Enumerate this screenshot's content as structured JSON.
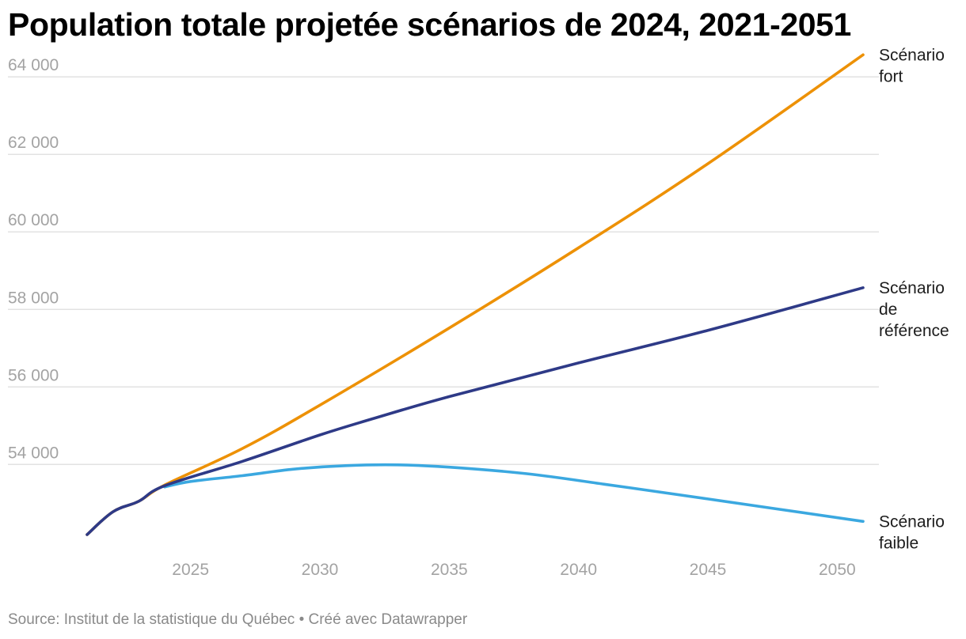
{
  "title": "Population totale projetée scénarios de 2024, 2021-2051",
  "footer": {
    "source": "Source: Institut de la statistique du Québec",
    "separator": "•",
    "credit": "Créé avec Datawrapper"
  },
  "colors": {
    "fort": "#ed9106",
    "reference": "#2e3a87",
    "faible": "#3ba8e0",
    "grid": "#e2e2e2",
    "tick_text": "#a3a3a3",
    "label_text": "#1d1d1d"
  },
  "chart_data": {
    "type": "line",
    "title": "Population totale projetée scénarios de 2024, 2021-2051",
    "xlabel": "",
    "ylabel": "",
    "xlim": [
      2021,
      2051
    ],
    "ylim": [
      51700,
      64800
    ],
    "x_ticks": [
      2025,
      2030,
      2035,
      2040,
      2045,
      2050
    ],
    "y_ticks": [
      54000,
      56000,
      58000,
      60000,
      62000,
      64000
    ],
    "y_tick_labels": [
      "54 000",
      "56 000",
      "58 000",
      "60 000",
      "62 000",
      "64 000"
    ],
    "grid": true,
    "legend": "direct labels at line ends (right)",
    "series": [
      {
        "name": "Scénario fort",
        "label_lines": [
          "Scénario",
          "fort"
        ],
        "color": "#ed9106",
        "x": [
          2021,
          2022,
          2023,
          2024,
          2027,
          2030,
          2035,
          2040,
          2045,
          2051
        ],
        "y": [
          52190,
          52780,
          53050,
          53470,
          54410,
          55530,
          57520,
          59590,
          61760,
          64570
        ]
      },
      {
        "name": "Scénario de référence",
        "label_lines": [
          "Scénario",
          "de",
          "référence"
        ],
        "color": "#2e3a87",
        "x": [
          2021,
          2022,
          2023,
          2024,
          2027,
          2030,
          2032,
          2035,
          2040,
          2045,
          2051
        ],
        "y": [
          52190,
          52780,
          53050,
          53450,
          54080,
          54760,
          55170,
          55750,
          56620,
          57460,
          58560
        ]
      },
      {
        "name": "Scénario faible",
        "label_lines": [
          "Scénario",
          "faible"
        ],
        "color": "#3ba8e0",
        "x": [
          2024,
          2025,
          2027,
          2029,
          2031,
          2033,
          2035,
          2038,
          2041,
          2045,
          2051
        ],
        "y": [
          53420,
          53560,
          53710,
          53880,
          53970,
          53990,
          53930,
          53760,
          53490,
          53110,
          52530
        ]
      }
    ]
  }
}
